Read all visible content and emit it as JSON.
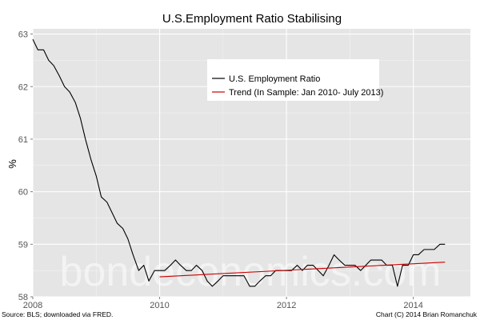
{
  "chart_data": {
    "type": "line",
    "title": "U.S.Employment Ratio Stabilising",
    "xlabel": "",
    "ylabel": "%",
    "xlim": [
      2008.0,
      2014.9
    ],
    "ylim": [
      58.0,
      63.1
    ],
    "xticks": [
      2008,
      2010,
      2012,
      2014
    ],
    "yticks": [
      58,
      59,
      60,
      61,
      62,
      63
    ],
    "grid": true,
    "legend_position": "top-center",
    "series": [
      {
        "name": "U.S. Employment Ratio",
        "color": "#000000",
        "x": [
          2008.0,
          2008.08,
          2008.17,
          2008.25,
          2008.33,
          2008.42,
          2008.5,
          2008.58,
          2008.67,
          2008.75,
          2008.83,
          2008.92,
          2009.0,
          2009.08,
          2009.17,
          2009.25,
          2009.33,
          2009.42,
          2009.5,
          2009.58,
          2009.67,
          2009.75,
          2009.83,
          2009.92,
          2010.0,
          2010.08,
          2010.17,
          2010.25,
          2010.33,
          2010.42,
          2010.5,
          2010.58,
          2010.67,
          2010.75,
          2010.83,
          2010.92,
          2011.0,
          2011.08,
          2011.17,
          2011.25,
          2011.33,
          2011.42,
          2011.5,
          2011.58,
          2011.67,
          2011.75,
          2011.83,
          2011.92,
          2012.0,
          2012.08,
          2012.17,
          2012.25,
          2012.33,
          2012.42,
          2012.5,
          2012.58,
          2012.67,
          2012.75,
          2012.83,
          2012.92,
          2013.0,
          2013.08,
          2013.17,
          2013.25,
          2013.33,
          2013.42,
          2013.5,
          2013.58,
          2013.67,
          2013.75,
          2013.83,
          2013.92,
          2014.0,
          2014.08,
          2014.17,
          2014.25,
          2014.33,
          2014.42,
          2014.5
        ],
        "values": [
          62.9,
          62.7,
          62.7,
          62.5,
          62.4,
          62.2,
          62.0,
          61.9,
          61.7,
          61.4,
          61.0,
          60.6,
          60.3,
          59.9,
          59.8,
          59.6,
          59.4,
          59.3,
          59.1,
          58.8,
          58.5,
          58.6,
          58.3,
          58.5,
          58.5,
          58.5,
          58.6,
          58.7,
          58.6,
          58.5,
          58.5,
          58.6,
          58.5,
          58.3,
          58.2,
          58.3,
          58.4,
          58.4,
          58.4,
          58.4,
          58.4,
          58.2,
          58.2,
          58.3,
          58.4,
          58.4,
          58.5,
          58.5,
          58.5,
          58.5,
          58.6,
          58.5,
          58.6,
          58.6,
          58.5,
          58.4,
          58.6,
          58.8,
          58.7,
          58.6,
          58.6,
          58.6,
          58.5,
          58.6,
          58.7,
          58.7,
          58.7,
          58.6,
          58.6,
          58.2,
          58.6,
          58.6,
          58.8,
          58.8,
          58.9,
          58.9,
          58.9,
          59.0,
          59.0
        ]
      },
      {
        "name": "Trend (In Sample: Jan 2010- July 2013)",
        "color": "#cc0000",
        "x": [
          2010.0,
          2014.5
        ],
        "values": [
          58.38,
          58.66
        ]
      }
    ],
    "footnote_left": "Source: BLS; downloaded via FRED.",
    "footnote_right": "Chart (C) 2014 Brian Romanchuk",
    "watermark": "bondeconomics.com"
  }
}
